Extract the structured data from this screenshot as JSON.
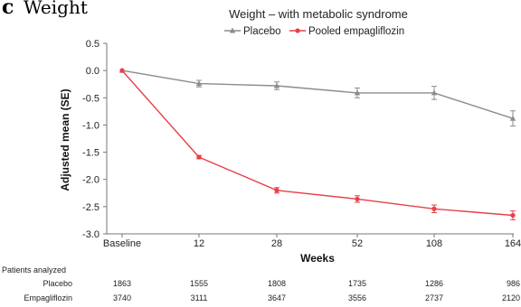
{
  "panel": {
    "label": "c",
    "title": "Weight"
  },
  "chart_data": {
    "type": "line",
    "title": "Weight – with metabolic syndrome",
    "xlabel": "Weeks",
    "ylabel": "Adjusted mean (SE)",
    "categories": [
      "Baseline",
      "12",
      "28",
      "52",
      "108",
      "164"
    ],
    "ylim": [
      -3.0,
      0.5
    ],
    "yticks": [
      0.5,
      0.0,
      -0.5,
      -1.0,
      -1.5,
      -2.0,
      -2.5,
      -3.0
    ],
    "ytick_labels": [
      "0.5",
      "0.0",
      "-0.5",
      "-1.0",
      "-1.5",
      "-2.0",
      "-2.5",
      "-3.0"
    ],
    "grid": false,
    "legend_position": "top",
    "series": [
      {
        "name": "Placebo",
        "color": "#8c8c8c",
        "marker": "triangle",
        "values": [
          0.0,
          -0.24,
          -0.28,
          -0.41,
          -0.41,
          -0.88
        ],
        "se": [
          0.0,
          0.06,
          0.07,
          0.09,
          0.12,
          0.14
        ]
      },
      {
        "name": "Pooled empagliflozin",
        "color": "#e8404a",
        "marker": "circle",
        "values": [
          0.0,
          -1.59,
          -2.2,
          -2.36,
          -2.54,
          -2.66
        ],
        "se": [
          0.0,
          0.03,
          0.05,
          0.06,
          0.07,
          0.08
        ]
      }
    ]
  },
  "patients_analyzed": {
    "label": "Patients analyzed",
    "rows": [
      {
        "label": "Placebo",
        "values": [
          "1863",
          "1555",
          "1808",
          "1735",
          "1286",
          "986"
        ]
      },
      {
        "label": "Empagliflozin",
        "values": [
          "3740",
          "3111",
          "3647",
          "3556",
          "2737",
          "2120"
        ]
      }
    ]
  }
}
